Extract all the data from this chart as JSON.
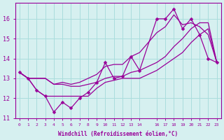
{
  "title": "",
  "xlabel": "Windchill (Refroidissement éolien,°C)",
  "ylabel": "",
  "bg_color": "#d6f0f0",
  "line_color": "#990099",
  "grid_color": "#aadddd",
  "xlim": [
    -0.5,
    23.5
  ],
  "ylim": [
    11,
    16.8
  ],
  "yticks": [
    11,
    12,
    13,
    14,
    15,
    16
  ],
  "xticks": [
    0,
    1,
    2,
    3,
    4,
    5,
    6,
    7,
    8,
    9,
    10,
    11,
    12,
    13,
    14,
    16,
    17,
    18,
    19,
    20,
    21,
    22,
    23
  ],
  "xtick_labels": [
    "0",
    "1",
    "2",
    "3",
    "4",
    "5",
    "6",
    "7",
    "8",
    "9",
    "10",
    "11",
    "12",
    "13",
    "14",
    "16",
    "17",
    "18",
    "19",
    "20",
    "21",
    "22",
    "23"
  ],
  "series": [
    [
      13.3,
      13.0,
      12.4,
      12.1,
      11.3,
      11.8,
      11.5,
      12.0,
      12.3,
      12.8,
      13.8,
      13.0,
      13.1,
      14.1,
      13.4,
      16.0,
      16.0,
      16.5,
      15.5,
      16.0,
      15.2,
      14.0,
      13.8
    ],
    [
      13.3,
      13.0,
      13.0,
      13.0,
      12.7,
      12.7,
      12.6,
      12.6,
      12.7,
      12.8,
      13.0,
      13.1,
      13.1,
      13.3,
      13.4,
      13.8,
      14.1,
      14.6,
      15.0,
      15.5,
      15.8,
      15.8,
      13.8
    ],
    [
      13.3,
      13.0,
      13.0,
      13.0,
      12.7,
      12.8,
      12.7,
      12.8,
      13.0,
      13.2,
      13.6,
      13.7,
      13.7,
      14.1,
      14.3,
      15.3,
      15.6,
      16.2,
      15.7,
      15.8,
      15.6,
      15.2,
      13.8
    ],
    [
      13.3,
      13.0,
      12.4,
      12.1,
      12.1,
      12.1,
      12.1,
      12.1,
      12.1,
      12.5,
      12.8,
      12.9,
      13.0,
      13.0,
      13.0,
      13.4,
      13.7,
      14.0,
      14.3,
      14.8,
      15.2,
      15.5,
      13.8
    ]
  ],
  "x": [
    0,
    1,
    2,
    3,
    4,
    5,
    6,
    7,
    8,
    9,
    10,
    11,
    12,
    13,
    14,
    16,
    17,
    18,
    19,
    20,
    21,
    22,
    23
  ]
}
